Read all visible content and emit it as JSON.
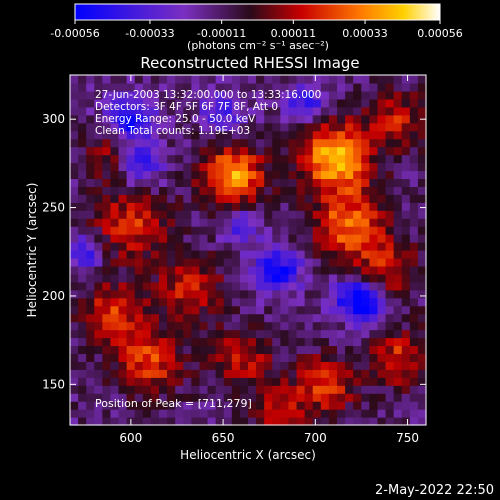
{
  "colorbar": {
    "ticks": [
      "-0.00056",
      "-0.00033",
      "-0.00011",
      "0.00011",
      "0.00033",
      "0.00056"
    ],
    "unit_label": "(photons cm⁻² s⁻¹ asec⁻²)",
    "range": [
      -0.00056,
      0.00056
    ]
  },
  "footer": {
    "timestamp": "2-May-2022 22:50"
  },
  "chart_data": {
    "type": "heatmap",
    "title": "Reconstructed RHESSI Image",
    "xlabel": "Heliocentric X (arcsec)",
    "ylabel": "Heliocentric Y (arcsec)",
    "xlim": [
      567,
      760
    ],
    "ylim": [
      127,
      325
    ],
    "xticks": [
      600,
      650,
      700,
      750
    ],
    "yticks": [
      150,
      200,
      250,
      300
    ],
    "info_lines": [
      "27-Jun-2003 13:32:00.000 to 13:33:16.000",
      "Detectors: 3F 4F 5F 6F 7F 8F, Att 0",
      "Energy Range: 25.0 - 50.0 keV",
      "Clean    Total counts: 1.19E+03"
    ],
    "peak_label": "Position of Peak = [711,279]",
    "peak_position": [
      711,
      279
    ],
    "color_scale": [
      "#0000ff",
      "#7b2fc0",
      "#2a0a1a",
      "#c80000",
      "#ff7700",
      "#ffd000",
      "#ffffff"
    ],
    "sources": [
      {
        "x": 655,
        "y": 268,
        "peak": 0.0005,
        "sigma": 12
      },
      {
        "x": 711,
        "y": 279,
        "peak": 0.00056,
        "sigma": 13
      },
      {
        "x": 718,
        "y": 240,
        "peak": 0.0004,
        "sigma": 14
      },
      {
        "x": 600,
        "y": 240,
        "peak": 0.0003,
        "sigma": 14
      },
      {
        "x": 632,
        "y": 205,
        "peak": 0.0003,
        "sigma": 12
      },
      {
        "x": 590,
        "y": 190,
        "peak": 0.00033,
        "sigma": 12
      },
      {
        "x": 610,
        "y": 163,
        "peak": 0.00034,
        "sigma": 12
      },
      {
        "x": 660,
        "y": 165,
        "peak": 0.00028,
        "sigma": 11
      },
      {
        "x": 705,
        "y": 150,
        "peak": 0.00035,
        "sigma": 11
      },
      {
        "x": 745,
        "y": 165,
        "peak": 0.0003,
        "sigma": 11
      },
      {
        "x": 740,
        "y": 215,
        "peak": 0.00026,
        "sigma": 12
      },
      {
        "x": 745,
        "y": 300,
        "peak": 0.00026,
        "sigma": 11
      },
      {
        "x": 680,
        "y": 135,
        "peak": 0.00024,
        "sigma": 10
      },
      {
        "x": 590,
        "y": 280,
        "peak": 0.0002,
        "sigma": 10
      }
    ],
    "negative_sources": [
      {
        "x": 600,
        "y": 300,
        "peak": -0.00045,
        "sigma": 9
      },
      {
        "x": 605,
        "y": 275,
        "peak": -0.00035,
        "sigma": 8
      },
      {
        "x": 680,
        "y": 215,
        "peak": -0.0004,
        "sigma": 9
      },
      {
        "x": 720,
        "y": 200,
        "peak": -0.00035,
        "sigma": 8
      },
      {
        "x": 650,
        "y": 305,
        "peak": -0.0003,
        "sigma": 8
      },
      {
        "x": 695,
        "y": 310,
        "peak": -0.0003,
        "sigma": 8
      },
      {
        "x": 730,
        "y": 195,
        "peak": -0.00035,
        "sigma": 8
      },
      {
        "x": 575,
        "y": 225,
        "peak": -0.0003,
        "sigma": 7
      },
      {
        "x": 660,
        "y": 240,
        "peak": -0.00025,
        "sigma": 8
      }
    ]
  }
}
